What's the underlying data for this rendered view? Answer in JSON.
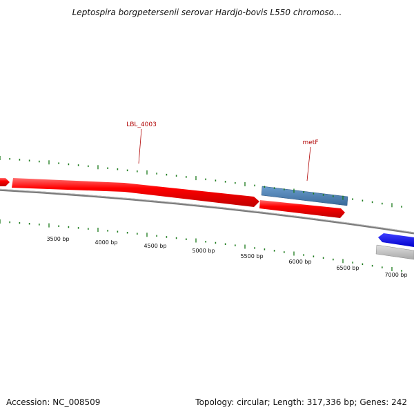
{
  "title": "Leptospira borgpetersenii serovar Hardjo-bovis L550 chromoso...",
  "footer": {
    "accession": "Accession: NC_008509",
    "summary": "Topology: circular; Length: 317,336 bp; Genes: 242"
  },
  "gene_labels": [
    {
      "id": "lbl-4003",
      "text": "LBL_4003"
    },
    {
      "id": "metf",
      "text": "metF"
    }
  ],
  "bp_labels": [
    "3500 bp",
    "4000 bp",
    "4500 bp",
    "5000 bp",
    "5500 bp",
    "6000 bp",
    "6500 bp",
    "7000 bp"
  ],
  "colors": {
    "forward_gene": "#ff0000",
    "reverse_gene": "#0000ff",
    "other_gene": "#4a7fb5",
    "backbone": "#808080",
    "tick": "#1a7a1a",
    "label": "#b00000"
  }
}
